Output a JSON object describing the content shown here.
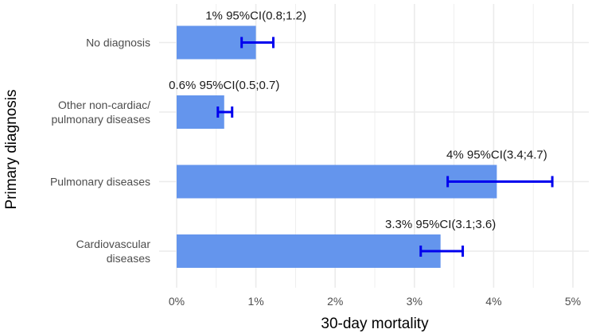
{
  "chart_data": {
    "type": "bar",
    "orientation": "horizontal",
    "title": "",
    "xlabel": "30-day mortality",
    "ylabel": "Primary diagnosis",
    "xlim": [
      0,
      5.2
    ],
    "xticks": [
      0,
      1,
      2,
      3,
      4,
      5
    ],
    "xtick_labels": [
      "0%",
      "1%",
      "2%",
      "3%",
      "4%",
      "5%"
    ],
    "grid": true,
    "categories": [
      {
        "lines": [
          "No diagnosis"
        ]
      },
      {
        "lines": [
          "Other non-cardiac/",
          "pulmonary diseases"
        ]
      },
      {
        "lines": [
          "Pulmonary diseases"
        ]
      },
      {
        "lines": [
          "Cardiovascular",
          "diseases"
        ]
      }
    ],
    "values": [
      1.0,
      0.6,
      4.04,
      3.33
    ],
    "ci_low": [
      0.82,
      0.52,
      3.42,
      3.08
    ],
    "ci_high": [
      1.22,
      0.7,
      4.74,
      3.61
    ],
    "labels": [
      "1% 95%CI(0.8;1.2)",
      "0.6% 95%CI(0.5;0.7)",
      "4% 95%CI(3.4;4.7)",
      "3.3% 95%CI(3.1;3.6)"
    ],
    "bar_color": "#6495ED",
    "error_color": "#0000EE",
    "grid_color": "#ebebeb"
  }
}
